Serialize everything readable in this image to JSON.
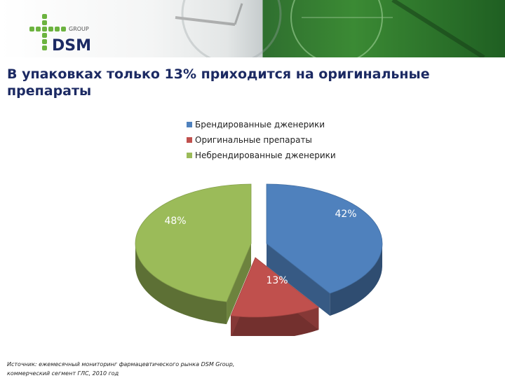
{
  "logo": {
    "word1": "DSM",
    "word2": "GROUP"
  },
  "title": "В упаковках только 13% приходится на оригинальные препараты",
  "chart_data": {
    "type": "pie",
    "legend_position": "top",
    "series": [
      {
        "name": "Брендированные дженерики",
        "value": 42,
        "label": "42%",
        "color": "#4f81bd"
      },
      {
        "name": "Оригинальные препараты",
        "value": 13,
        "label": "13%",
        "color": "#c0504d"
      },
      {
        "name": "Небрендированные дженерики",
        "value": 48,
        "label": "48%",
        "color": "#9bbb59"
      }
    ]
  },
  "source": {
    "line1": "Источник: ежемесячный мониторинг фармацевтического рынка DSM Group,",
    "line2": "коммерческий сегмент ГЛС, 2010 год"
  }
}
